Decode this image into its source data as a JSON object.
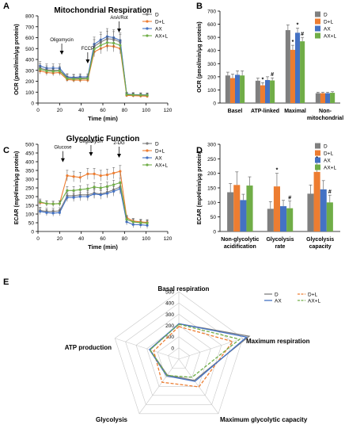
{
  "colors": {
    "D": "#7f7f7f",
    "D+L": "#ed7d31",
    "AX": "#4472c4",
    "AX+L": "#70ad47"
  },
  "chart_data": [
    {
      "panel": "A",
      "type": "line",
      "title": "Mitochondrial Respiration",
      "xlabel": "Time (min)",
      "ylabel": "OCR (pmol/min/μg protein)",
      "xlim": [
        0,
        120
      ],
      "ylim": [
        0,
        800
      ],
      "xticks": [
        0,
        20,
        40,
        60,
        80,
        100,
        120
      ],
      "yticks": [
        0,
        100,
        200,
        300,
        400,
        500,
        600,
        700,
        800
      ],
      "x": [
        2,
        8,
        14,
        20,
        27,
        33,
        39,
        46,
        52,
        58,
        64,
        70,
        76,
        82,
        88,
        95,
        101
      ],
      "series": [
        {
          "name": "D",
          "values": [
            320,
            305,
            300,
            300,
            235,
            230,
            230,
            230,
            520,
            560,
            590,
            585,
            560,
            80,
            75,
            72,
            70
          ]
        },
        {
          "name": "D+L",
          "values": [
            295,
            280,
            275,
            280,
            215,
            210,
            210,
            210,
            470,
            500,
            525,
            520,
            500,
            70,
            68,
            65,
            63
          ]
        },
        {
          "name": "AX",
          "values": [
            340,
            320,
            320,
            320,
            240,
            235,
            240,
            240,
            540,
            580,
            610,
            600,
            575,
            82,
            78,
            76,
            75
          ]
        },
        {
          "name": "AX+L",
          "values": [
            310,
            295,
            290,
            295,
            225,
            220,
            222,
            225,
            495,
            530,
            555,
            550,
            530,
            78,
            75,
            73,
            72
          ]
        }
      ],
      "annotations": [
        {
          "text": "Oligomycin",
          "x": 22
        },
        {
          "text": "FCCP",
          "x": 46
        },
        {
          "text": "AnA/Rot",
          "x": 75
        }
      ]
    },
    {
      "panel": "B",
      "type": "bar",
      "ylabel": "OCR (pmol/min/μg protein)",
      "ylim": [
        0,
        700
      ],
      "yticks": [
        0,
        100,
        200,
        300,
        400,
        500,
        600,
        700
      ],
      "categories": [
        "Basel",
        "ATP-linked",
        "Maximal",
        "Non-mitochondrial"
      ],
      "series": [
        {
          "name": "D",
          "values": [
            210,
            170,
            555,
            75
          ],
          "errors": [
            25,
            20,
            40,
            8
          ]
        },
        {
          "name": "D+L",
          "values": [
            190,
            135,
            405,
            75
          ],
          "errors": [
            30,
            20,
            35,
            8
          ]
        },
        {
          "name": "AX",
          "values": [
            215,
            175,
            535,
            75
          ],
          "errors": [
            30,
            25,
            35,
            8
          ]
        },
        {
          "name": "AX+L",
          "values": [
            210,
            172,
            470,
            78
          ],
          "errors": [
            35,
            20,
            30,
            8
          ]
        }
      ],
      "markers": [
        {
          "category": 1,
          "series": 1,
          "text": "*"
        },
        {
          "category": 1,
          "series": 3,
          "text": "#"
        },
        {
          "category": 2,
          "series": 1,
          "text": "*"
        },
        {
          "category": 2,
          "series": 2,
          "text": "*"
        },
        {
          "category": 2,
          "series": 3,
          "text": "#"
        }
      ]
    },
    {
      "panel": "C",
      "type": "line",
      "title": "Glycolytic Function",
      "xlabel": "Time (min)",
      "ylabel": "ECAR (mpH/min/μg protein)",
      "xlim": [
        0,
        120
      ],
      "ylim": [
        0,
        500
      ],
      "xticks": [
        0,
        20,
        40,
        60,
        80,
        100,
        120
      ],
      "yticks": [
        0,
        50,
        100,
        150,
        200,
        250,
        300,
        350,
        400,
        450,
        500
      ],
      "x": [
        2,
        8,
        14,
        20,
        27,
        33,
        39,
        46,
        52,
        58,
        64,
        70,
        76,
        82,
        88,
        95,
        101
      ],
      "series": [
        {
          "name": "D",
          "values": [
            120,
            115,
            115,
            118,
            205,
            205,
            210,
            210,
            220,
            215,
            225,
            240,
            255,
            70,
            55,
            50,
            50
          ]
        },
        {
          "name": "D+L",
          "values": [
            165,
            160,
            158,
            160,
            320,
            315,
            310,
            330,
            330,
            320,
            325,
            335,
            345,
            80,
            60,
            55,
            52
          ]
        },
        {
          "name": "AX",
          "values": [
            115,
            108,
            105,
            108,
            195,
            195,
            200,
            200,
            215,
            210,
            218,
            230,
            245,
            55,
            40,
            38,
            35
          ]
        },
        {
          "name": "AX+L",
          "values": [
            170,
            160,
            158,
            160,
            235,
            235,
            240,
            245,
            255,
            250,
            258,
            268,
            280,
            70,
            55,
            50,
            48
          ]
        }
      ],
      "annotations": [
        {
          "text": "Glucose",
          "x": 23
        },
        {
          "text": "Oligomycin",
          "x": 49
        },
        {
          "text": "2-DG",
          "x": 75
        }
      ]
    },
    {
      "panel": "D",
      "type": "bar",
      "ylabel": "ECAR (mpH/min/μg protein)",
      "ylim": [
        0,
        300
      ],
      "yticks": [
        0,
        50,
        100,
        150,
        200,
        250,
        300
      ],
      "categories": [
        "Non-glycolytic acidification",
        "Glycolysis rate",
        "Glycolysis capacity"
      ],
      "series": [
        {
          "name": "D",
          "values": [
            135,
            78,
            130
          ],
          "errors": [
            30,
            25,
            30
          ]
        },
        {
          "name": "D+L",
          "values": [
            160,
            155,
            205
          ],
          "errors": [
            45,
            45,
            35
          ]
        },
        {
          "name": "AX",
          "values": [
            108,
            87,
            145
          ],
          "errors": [
            20,
            20,
            30
          ]
        },
        {
          "name": "AX+L",
          "values": [
            158,
            80,
            100
          ],
          "errors": [
            30,
            25,
            25
          ]
        }
      ],
      "markers": [
        {
          "category": 1,
          "series": 1,
          "text": "*"
        },
        {
          "category": 1,
          "series": 3,
          "text": "#"
        },
        {
          "category": 2,
          "series": 1,
          "text": "*"
        },
        {
          "category": 2,
          "series": 3,
          "text": "#"
        }
      ]
    },
    {
      "panel": "E",
      "type": "radar",
      "axes": [
        "Basal  respiration",
        "Maximum respiration",
        "Maximum  glycolytic capacity",
        "Glycolysis",
        "ATP production"
      ],
      "rlim": [
        -100,
        500
      ],
      "rticks": [
        0,
        100,
        200,
        300,
        400,
        500
      ],
      "series": [
        {
          "name": "D",
          "values": [
            215,
            560,
            135,
            75,
            170
          ]
        },
        {
          "name": "D+L",
          "values": [
            190,
            405,
            205,
            155,
            135
          ]
        },
        {
          "name": "AX",
          "values": [
            215,
            535,
            145,
            85,
            175
          ]
        },
        {
          "name": "AX+L",
          "values": [
            210,
            470,
            100,
            80,
            170
          ]
        }
      ]
    }
  ]
}
